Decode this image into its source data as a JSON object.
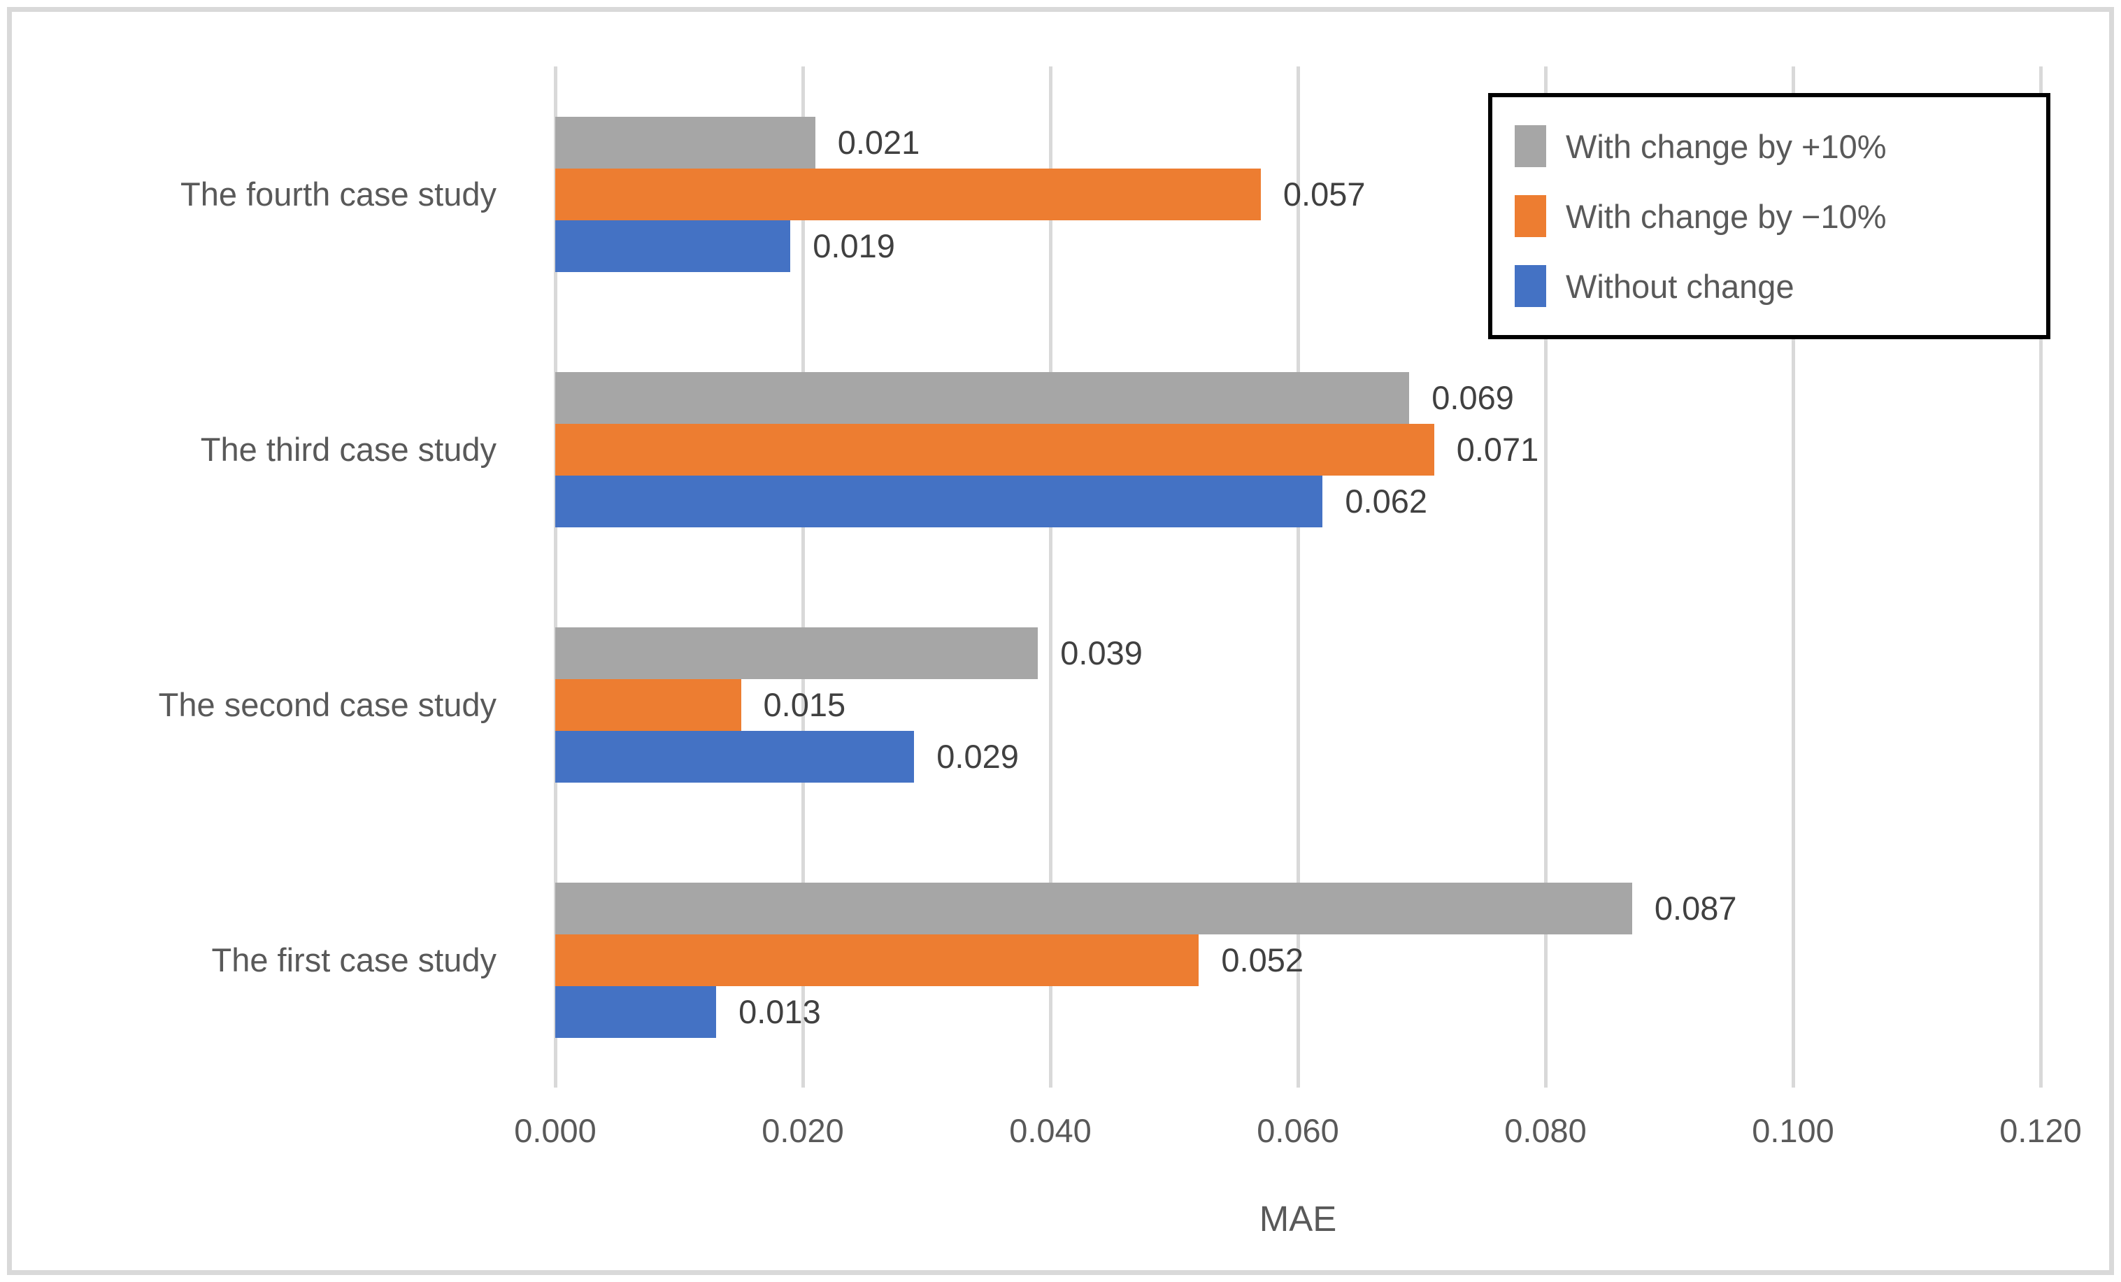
{
  "chart_data": {
    "type": "bar",
    "orientation": "horizontal",
    "xlabel": "MAE",
    "xlim": [
      0,
      0.12
    ],
    "x_ticks": [
      "0.000",
      "0.020",
      "0.040",
      "0.060",
      "0.080",
      "0.100",
      "0.120"
    ],
    "grid": true,
    "legend_position": "top-right",
    "categories_top_to_bottom": [
      "The fourth case study",
      "The third case study",
      "The second case study",
      "The first case study"
    ],
    "series": [
      {
        "name": "With change by +10%",
        "color": "#A6A6A6",
        "values": [
          0.021,
          0.069,
          0.039,
          0.087
        ],
        "labels": [
          "0.021",
          "0.069",
          "0.039",
          "0.087"
        ]
      },
      {
        "name": "With change by −10%",
        "color": "#ED7D31",
        "values": [
          0.057,
          0.071,
          0.015,
          0.052
        ],
        "labels": [
          "0.057",
          "0.071",
          "0.015",
          "0.052"
        ]
      },
      {
        "name": "Without change",
        "color": "#4472C4",
        "values": [
          0.019,
          0.062,
          0.029,
          0.013
        ],
        "labels": [
          "0.019",
          "0.062",
          "0.029",
          "0.013"
        ]
      }
    ],
    "colors": {
      "gridline": "#D9D9D9",
      "frame_border": "#D9D9D9",
      "legend_border": "#000000",
      "axis_text": "#595959",
      "data_label_text": "#404040"
    }
  }
}
